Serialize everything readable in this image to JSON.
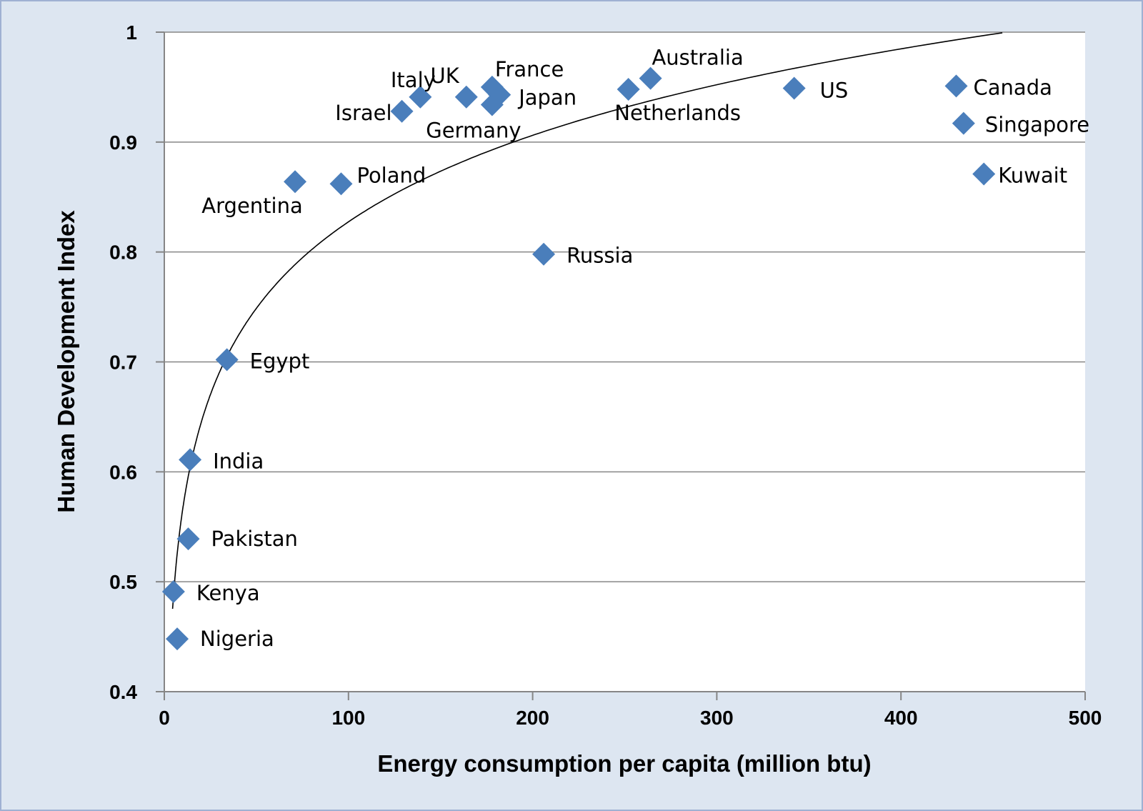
{
  "chart_data": {
    "type": "scatter",
    "title": "",
    "xlabel": "Energy consumption per capita (million btu)",
    "ylabel": "Human Development Index",
    "xlim": [
      0,
      500
    ],
    "ylim": [
      0.4,
      1
    ],
    "x_ticks": [
      "0",
      "100",
      "200",
      "300",
      "400",
      "500"
    ],
    "y_ticks": [
      "0.4",
      "0.5",
      "0.6",
      "0.7",
      "0.8",
      "0.9",
      "1"
    ],
    "grid": "horizontal",
    "marker": "diamond",
    "marker_color": "#4a7ebb",
    "trendline": "logarithmic",
    "points": [
      {
        "label": "Nigeria",
        "x": 7,
        "y": 0.448
      },
      {
        "label": "Kenya",
        "x": 5,
        "y": 0.491
      },
      {
        "label": "Pakistan",
        "x": 13,
        "y": 0.539
      },
      {
        "label": "India",
        "x": 14,
        "y": 0.611
      },
      {
        "label": "Egypt",
        "x": 34,
        "y": 0.702
      },
      {
        "label": "Argentina",
        "x": 71,
        "y": 0.864
      },
      {
        "label": "Poland",
        "x": 96,
        "y": 0.862
      },
      {
        "label": "Israel",
        "x": 129,
        "y": 0.928
      },
      {
        "label": "Italy",
        "x": 139,
        "y": 0.941
      },
      {
        "label": "UK",
        "x": 164,
        "y": 0.941
      },
      {
        "label": "France",
        "x": 178,
        "y": 0.95
      },
      {
        "label": "Germany",
        "x": 178,
        "y": 0.934
      },
      {
        "label": "Japan",
        "x": 182,
        "y": 0.943
      },
      {
        "label": "Russia",
        "x": 206,
        "y": 0.798
      },
      {
        "label": "Netherlands",
        "x": 252,
        "y": 0.948
      },
      {
        "label": "Australia",
        "x": 264,
        "y": 0.958
      },
      {
        "label": "US",
        "x": 342,
        "y": 0.949
      },
      {
        "label": "Canada",
        "x": 430,
        "y": 0.951
      },
      {
        "label": "Singapore",
        "x": 434,
        "y": 0.917
      },
      {
        "label": "Kuwait",
        "x": 445,
        "y": 0.871
      }
    ]
  }
}
